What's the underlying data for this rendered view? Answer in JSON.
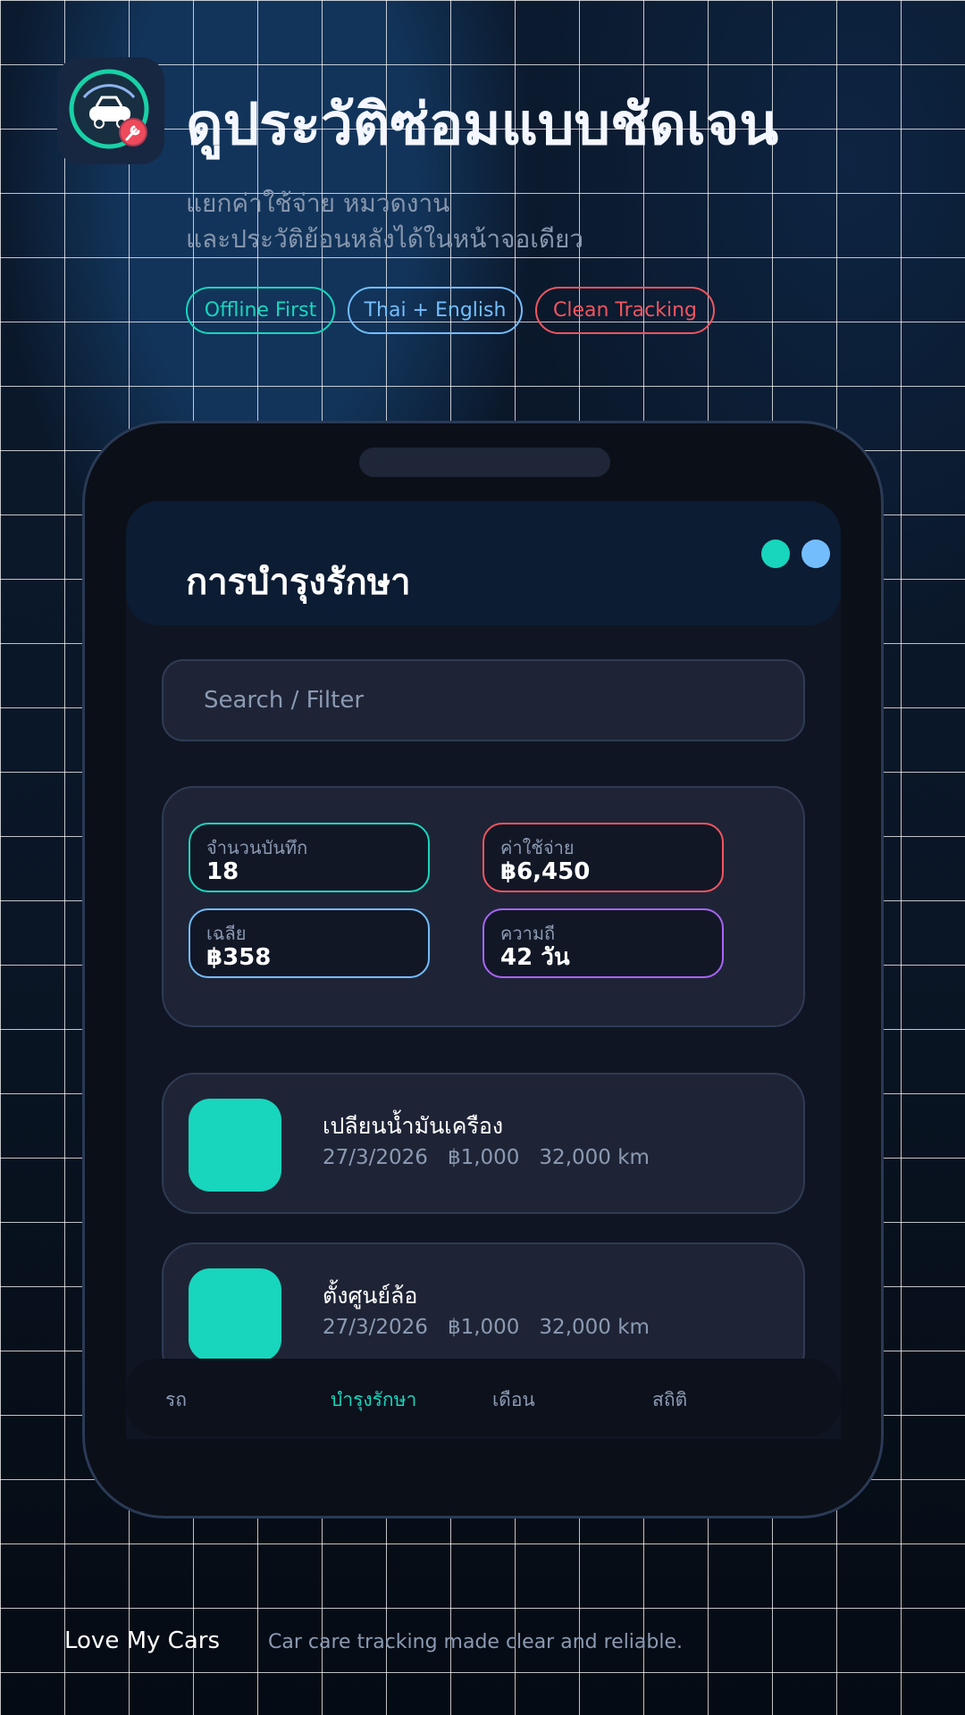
{
  "hero": {
    "title": "ดูประวัติซ่อมแบบชัดเจน",
    "subtitle_lines": [
      "แยกค่าใช้จ่าย หมวดงาน",
      "และประวัติย้อนหลังได้ในหน้าจอเดียว"
    ],
    "chips": [
      {
        "label": "Offline First",
        "color": "#17d6bd"
      },
      {
        "label": "Thai + English",
        "color": "#74bdfc"
      },
      {
        "label": "Clean Tracking",
        "color": "#f2555f"
      }
    ],
    "app_icon": "car-wrench-gauge-icon"
  },
  "phone": {
    "header_title": "การบำรุงรักษา",
    "dots": [
      "#17d6bd",
      "#74bdfc"
    ],
    "search_placeholder": "Search / Filter",
    "stats": [
      {
        "label": "จำนวนบันทึก",
        "value": "18",
        "color": "#17d6bd"
      },
      {
        "label": "ค่าใช้จ่าย",
        "value": "฿6,450",
        "color": "#f2555f"
      },
      {
        "label": "เฉลีย",
        "value": "฿358",
        "color": "#74bdfc"
      },
      {
        "label": "ความถี",
        "value": "42 วัน",
        "color": "#a865f5"
      }
    ],
    "records": [
      {
        "title": "เปลียนน้ำมันเครือง",
        "date": "27/3/2026",
        "cost": "฿1,000",
        "mileage": "32,000 km"
      },
      {
        "title": "ตั้งศูนย์ล้อ",
        "date": "27/3/2026",
        "cost": "฿1,000",
        "mileage": "32,000 km"
      }
    ],
    "nav": [
      {
        "label": "รถ",
        "active": false
      },
      {
        "label": "บำรุงรักษา",
        "active": true
      },
      {
        "label": "เดือน",
        "active": false
      },
      {
        "label": "สถิติ",
        "active": false
      }
    ],
    "accent": "#17d6bd"
  },
  "footer": {
    "brand": "Love My Cars",
    "tagline": "Car care tracking made clear and reliable."
  }
}
